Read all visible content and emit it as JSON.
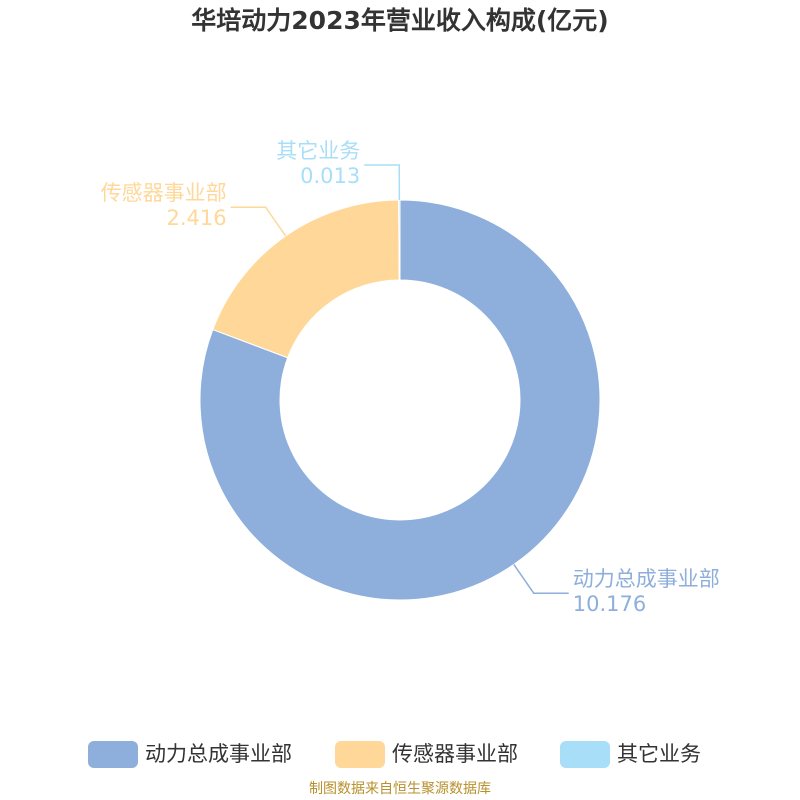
{
  "chart_data": {
    "type": "donut",
    "title": "华培动力2023年营业收入构成(亿元)",
    "categories": [
      "动力总成事业部",
      "传感器事业部",
      "其它业务"
    ],
    "values": [
      10.176,
      2.416,
      0.013
    ],
    "colors": [
      "#8eaedb",
      "#ffd899",
      "#a8def7"
    ],
    "legend": "bottom",
    "source": "制图数据来自恒生聚源数据库"
  }
}
